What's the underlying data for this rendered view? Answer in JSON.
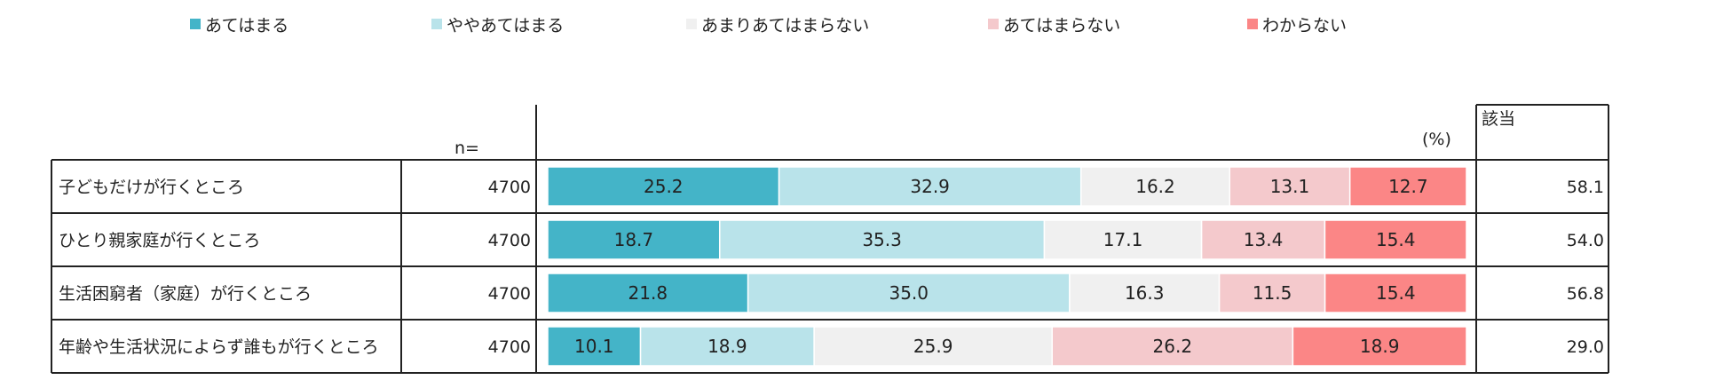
{
  "legend": [
    {
      "label": "あてはまる",
      "color": "#44b4c8"
    },
    {
      "label": "ややあてはまる",
      "color": "#b9e3ea"
    },
    {
      "label": "あまりあてはまらない",
      "color": "#f0f0f0"
    },
    {
      "label": "あてはまらない",
      "color": "#f4c9cc"
    },
    {
      "label": "わからない",
      "color": "#fb8686"
    }
  ],
  "headers": {
    "n": "n=",
    "unit": "(%)",
    "gaito": "該当"
  },
  "chart_data": {
    "type": "bar",
    "stacked": true,
    "orientation": "horizontal",
    "unit": "%",
    "categories": [
      "子どもだけが行くところ",
      "ひとり親家庭が行くところ",
      "生活困窮者（家庭）が行くところ",
      "年齢や生活状況によらず誰もが行くところ"
    ],
    "n": [
      "4700",
      "4700",
      "4700",
      "4700"
    ],
    "series": [
      {
        "name": "あてはまる",
        "values": [
          25.2,
          18.7,
          21.8,
          10.1
        ],
        "labels": [
          "25.2",
          "18.7",
          "21.8",
          "10.1"
        ]
      },
      {
        "name": "ややあてはまる",
        "values": [
          32.9,
          35.3,
          35.0,
          18.9
        ],
        "labels": [
          "32.9",
          "35.3",
          "35.0",
          "18.9"
        ]
      },
      {
        "name": "あまりあてはまらない",
        "values": [
          16.2,
          17.1,
          16.3,
          25.9
        ],
        "labels": [
          "16.2",
          "17.1",
          "16.3",
          "25.9"
        ]
      },
      {
        "name": "あてはまらない",
        "values": [
          13.1,
          13.4,
          11.5,
          26.2
        ],
        "labels": [
          "13.1",
          "13.4",
          "11.5",
          "26.2"
        ]
      },
      {
        "name": "わからない",
        "values": [
          12.7,
          15.4,
          15.4,
          18.9
        ],
        "labels": [
          "12.7",
          "15.4",
          "15.4",
          "18.9"
        ]
      }
    ],
    "gaito": [
      "58.1",
      "54.0",
      "56.8",
      "29.0"
    ],
    "xlim": [
      0,
      100
    ]
  }
}
